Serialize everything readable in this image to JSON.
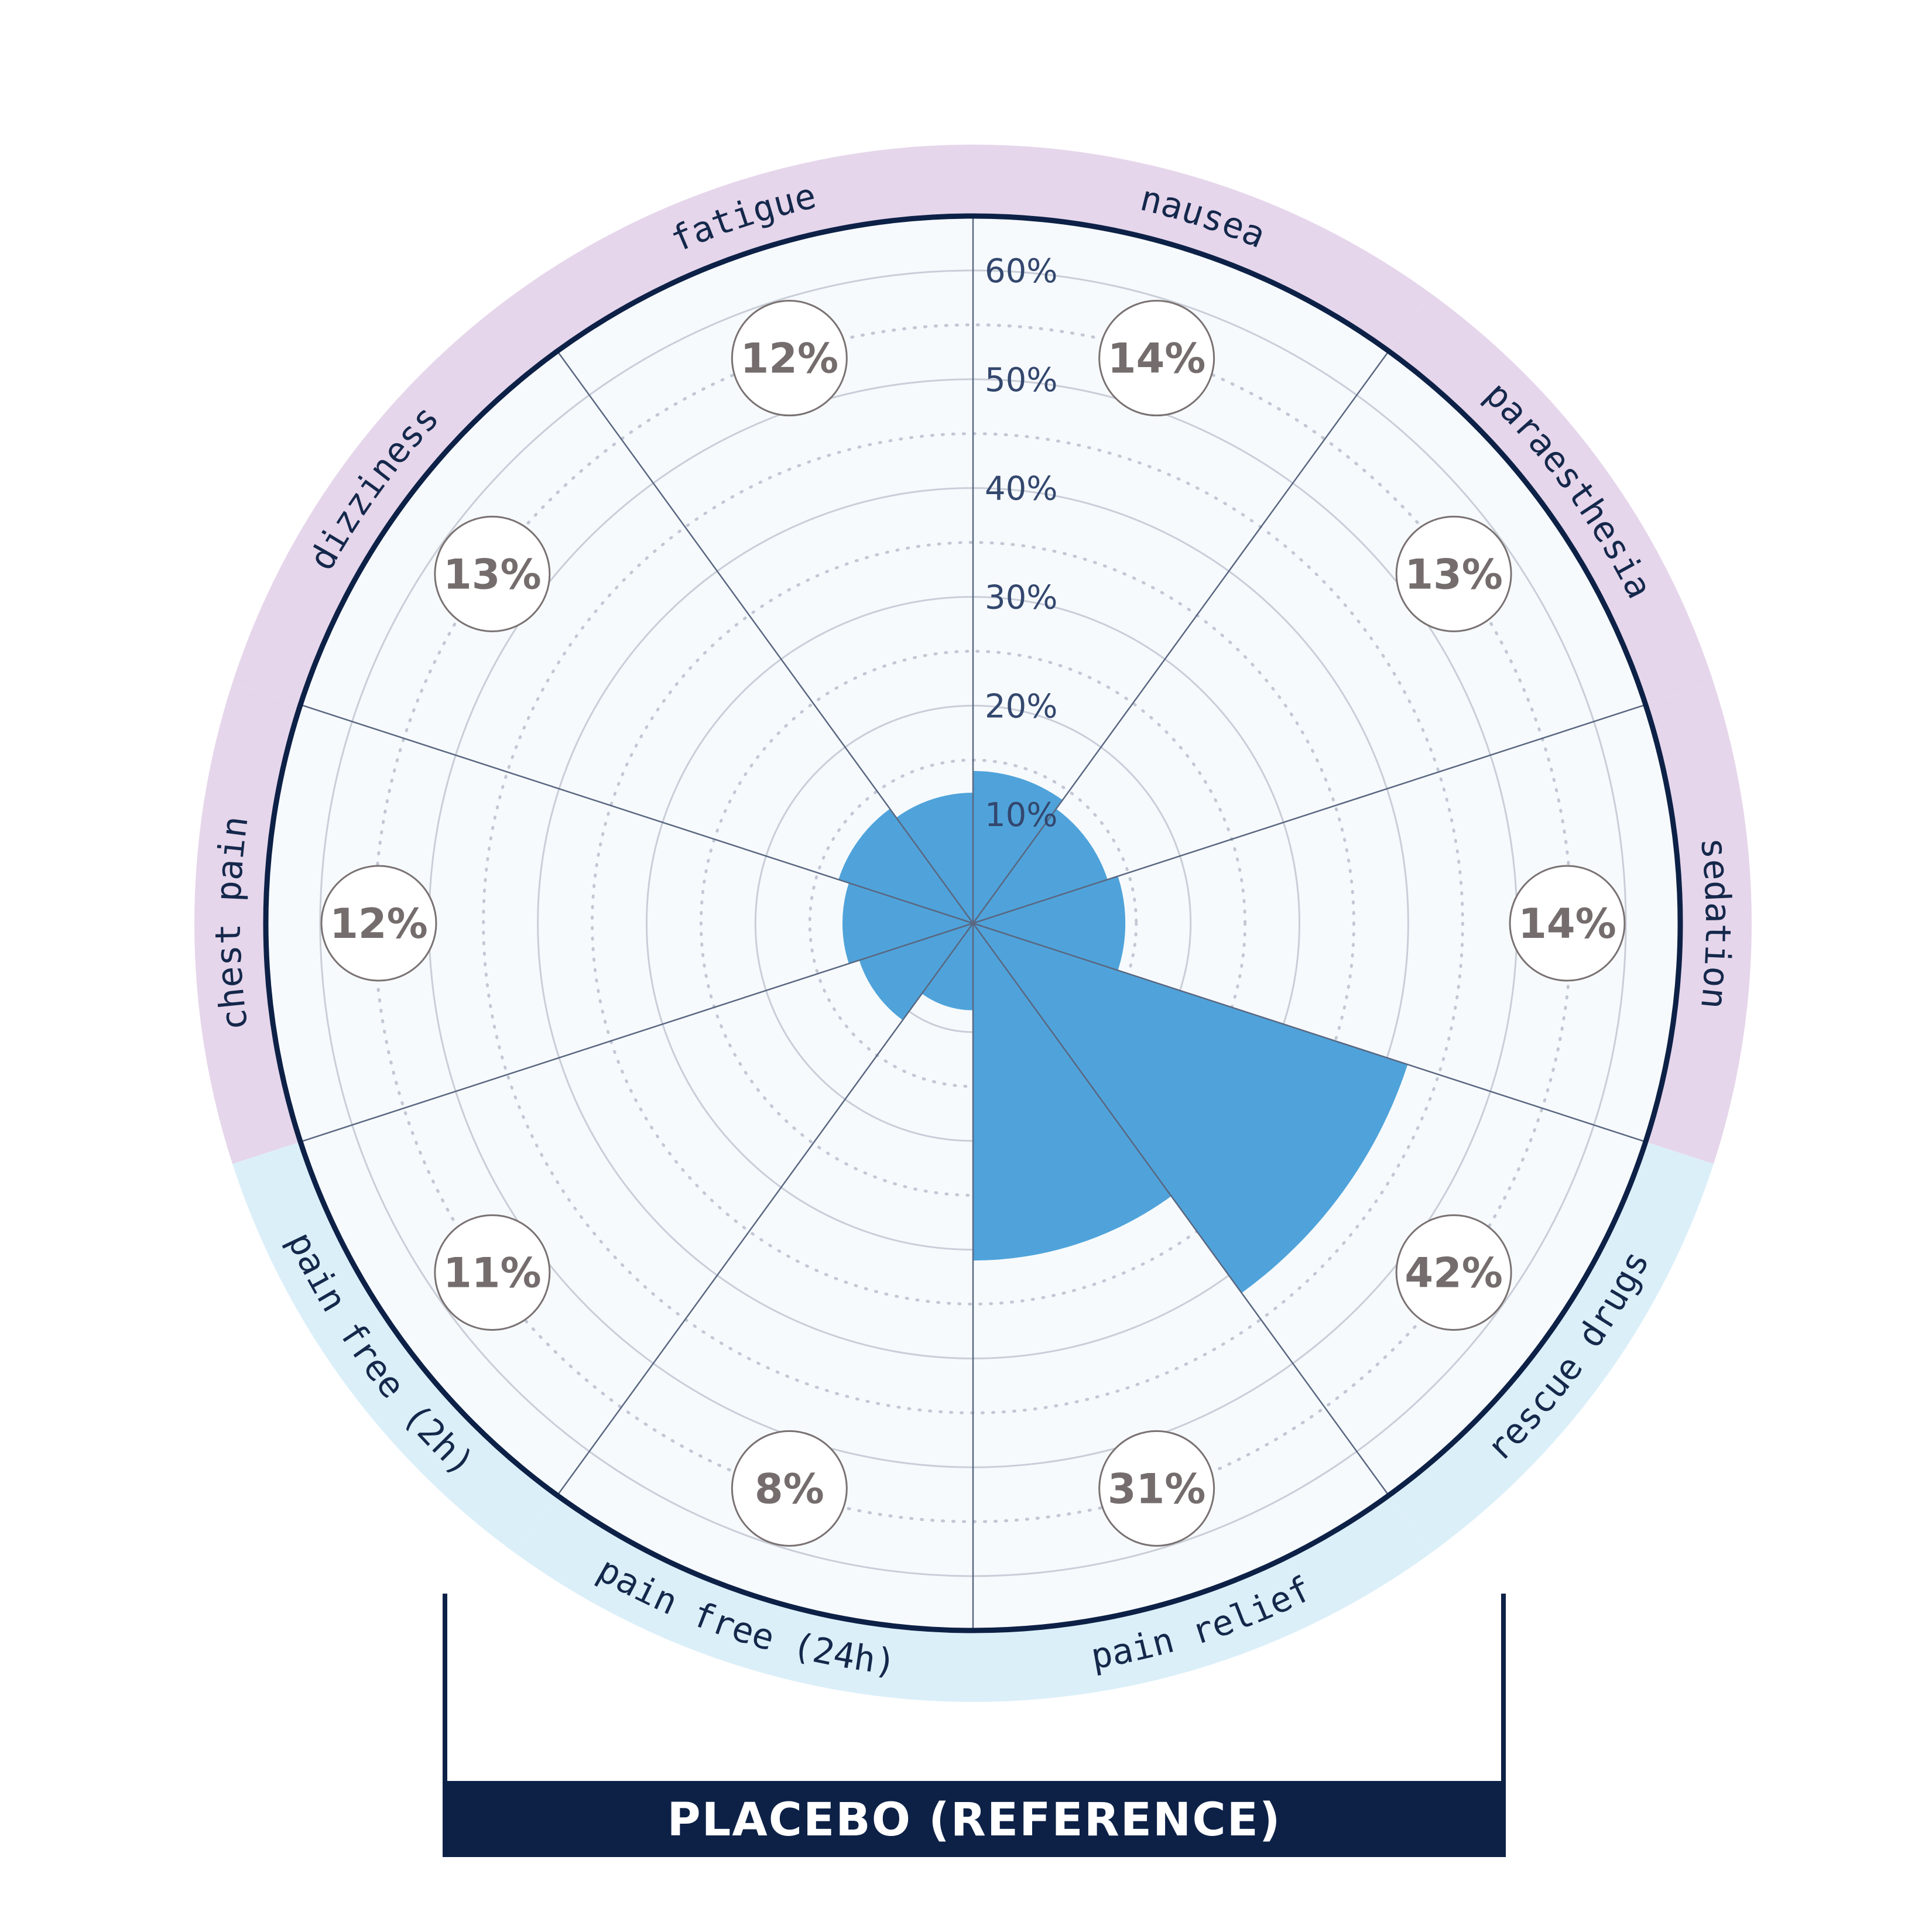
{
  "chart_data": {
    "type": "polar-bar",
    "title": "",
    "rmax": 65,
    "ticks": [
      10,
      20,
      30,
      40,
      50,
      60
    ],
    "tick_labels": [
      "10%",
      "20%",
      "30%",
      "40%",
      "50%",
      "60%"
    ],
    "grid": true,
    "categories": [
      {
        "name": "nausea",
        "value": 14,
        "label": "14%",
        "group": "adverse"
      },
      {
        "name": "paraesthesia",
        "value": 13,
        "label": "13%",
        "group": "adverse"
      },
      {
        "name": "sedation",
        "value": 14,
        "label": "14%",
        "group": "adverse"
      },
      {
        "name": "rescue drugs",
        "value": 42,
        "label": "42%",
        "group": "efficacy"
      },
      {
        "name": "pain relief",
        "value": 31,
        "label": "31%",
        "group": "efficacy"
      },
      {
        "name": "pain free (24h)",
        "value": 8,
        "label": "8%",
        "group": "efficacy"
      },
      {
        "name": "pain free (2h)",
        "value": 11,
        "label": "11%",
        "group": "efficacy"
      },
      {
        "name": "chest pain",
        "value": 12,
        "label": "12%",
        "group": "adverse"
      },
      {
        "name": "dizziness",
        "value": 13,
        "label": "13%",
        "group": "adverse"
      },
      {
        "name": "fatigue",
        "value": 12,
        "label": "12%",
        "group": "adverse"
      }
    ],
    "footer": "PLACEBO (REFERENCE)",
    "colors": {
      "bar": "#4fa3da",
      "adverse_band": "#e6d6eb",
      "efficacy_band": "#dbeff9",
      "plot_bg": "#f7fafd",
      "outline": "#0d2147",
      "footer_bg": "#0d2147"
    }
  }
}
